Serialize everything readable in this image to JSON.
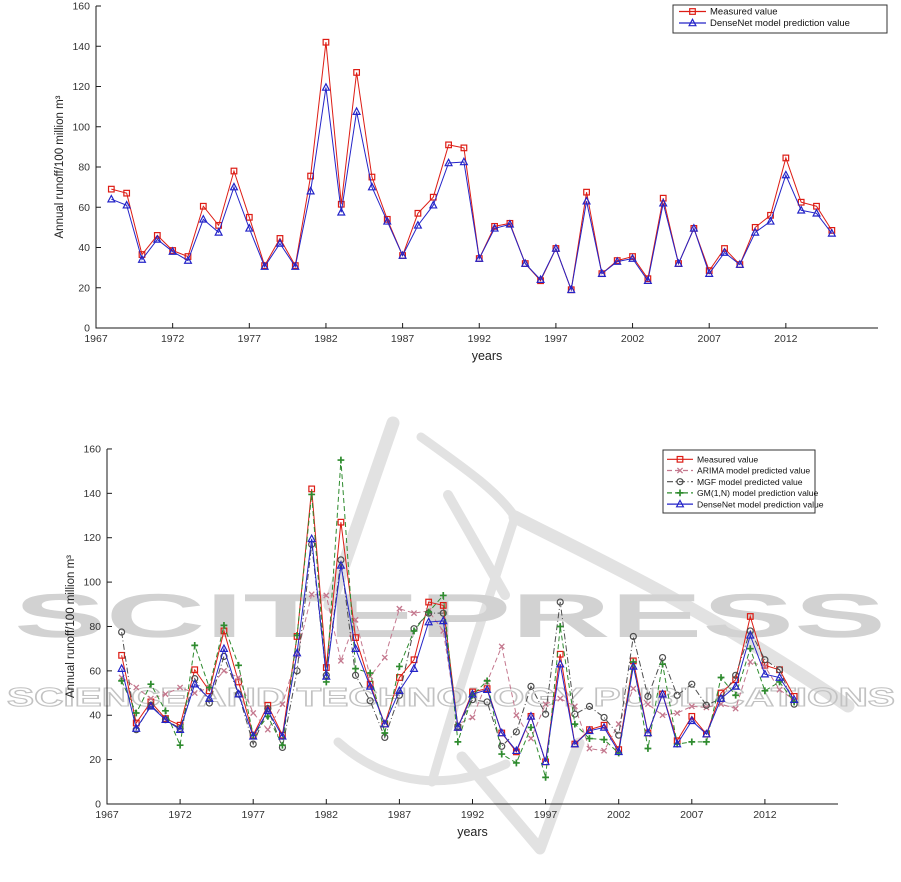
{
  "page": {
    "background": "#ffffff"
  },
  "watermark": {
    "line1": "SCITEPRESS",
    "line2": "SCIENCE AND TECHNOLOGY PUBLICATIONS",
    "letters_color": "#d2d2d2",
    "outline_color": "#c2c2c2",
    "art_color": "#e2e2e2"
  },
  "chart_data": [
    {
      "type": "line",
      "position": "top",
      "xlabel": "years",
      "ylabel": "Annual runoff/100 million m³",
      "ylim": [
        0,
        160
      ],
      "yticks": [
        0,
        20,
        40,
        60,
        80,
        100,
        120,
        140,
        160
      ],
      "xticks": [
        1967,
        1972,
        1977,
        1982,
        1987,
        1992,
        1997,
        2002,
        2007,
        2012
      ],
      "x_start": 1968,
      "years_range": [
        1968,
        2015
      ],
      "grid": false,
      "legend_position": "top-right",
      "series": [
        {
          "name": "Measured value",
          "color": "#dd1c14",
          "line_style": "solid",
          "marker": "square",
          "values": [
            69,
            67,
            36.5,
            46,
            38.5,
            35.5,
            60.5,
            51,
            78,
            55,
            31,
            44.5,
            31,
            75.5,
            142,
            61.5,
            127,
            75,
            54,
            36,
            57,
            65,
            91,
            89.5,
            34.5,
            50.5,
            52,
            32,
            23.5,
            39.5,
            19,
            67.5,
            27,
            33.5,
            35.5,
            24.5,
            64.5,
            32,
            49.5,
            28.5,
            39.5,
            31.5,
            50,
            56,
            84.5,
            62.5,
            60.5,
            48.5
          ]
        },
        {
          "name": "DenseNet model prediction value",
          "color": "#2424c8",
          "line_style": "solid",
          "marker": "triangle",
          "values": [
            64,
            61,
            34,
            44,
            38,
            33.5,
            54,
            47.5,
            70,
            49.5,
            30.5,
            42,
            30.5,
            68,
            119.5,
            57.5,
            107.5,
            70,
            53,
            36,
            51,
            61,
            82,
            82.5,
            34.5,
            49.5,
            51.5,
            32,
            24,
            39.5,
            19,
            63,
            27,
            33,
            34.5,
            23.5,
            62,
            32,
            49.5,
            27,
            37.5,
            31.5,
            47.5,
            53,
            76,
            58.5,
            57,
            47
          ]
        }
      ]
    },
    {
      "type": "line",
      "position": "bottom",
      "xlabel": "years",
      "ylabel": "Annual runoff/100 million m³",
      "ylim": [
        0,
        160
      ],
      "yticks": [
        0,
        20,
        40,
        60,
        80,
        100,
        120,
        140,
        160
      ],
      "xticks": [
        1967,
        1972,
        1977,
        1982,
        1987,
        1992,
        1997,
        2002,
        2007,
        2012
      ],
      "x_start": 1968,
      "years_range": [
        1968,
        2014
      ],
      "grid": false,
      "legend_position": "top-right",
      "series": [
        {
          "name": "Measured value",
          "color": "#dd1c14",
          "line_style": "solid",
          "marker": "square",
          "values": [
            67,
            36.5,
            46,
            38.5,
            35.5,
            60.5,
            51,
            78,
            55,
            31,
            44.5,
            31,
            75.5,
            142,
            61.5,
            127,
            75,
            54,
            36,
            57,
            65,
            91,
            89.5,
            34.5,
            50.5,
            52,
            32,
            23.5,
            39.5,
            19,
            67.5,
            27,
            33.5,
            35.5,
            24.5,
            64.5,
            32,
            49.5,
            28.5,
            39.5,
            31.5,
            50,
            56,
            84.5,
            62.5,
            60.5,
            48.5
          ]
        },
        {
          "name": "ARIMA model predicted value",
          "color": "#c4788e",
          "line_style": "dashed",
          "marker": "x",
          "values": [
            57,
            52.5,
            47.5,
            49.5,
            52.5,
            50,
            52.5,
            60,
            57,
            41,
            33.5,
            45,
            67,
            94.5,
            94,
            64.5,
            83,
            57.5,
            66,
            88,
            86,
            87,
            78,
            36,
            39,
            55,
            71,
            40,
            29.5,
            45,
            47.5,
            44,
            25,
            24,
            36,
            52,
            45,
            40,
            41,
            44,
            43.5,
            45,
            43,
            64,
            62,
            51.5,
            47
          ]
        },
        {
          "name": "MGF model predicted value",
          "color": "#4d4d4d",
          "line_style": "dashdot",
          "marker": "circle",
          "values": [
            77.5,
            33.5,
            44.5,
            38,
            34,
            56.5,
            45.5,
            66.5,
            49.5,
            27,
            43,
            25.5,
            60,
            117,
            58,
            110,
            58,
            46.5,
            30,
            49,
            79,
            86,
            86,
            35,
            47,
            46,
            26,
            32.5,
            53,
            40.5,
            91,
            40.5,
            44,
            39,
            31,
            75.5,
            48.5,
            66,
            49,
            54,
            44.5,
            47.5,
            58,
            78,
            65,
            60.5,
            45
          ]
        },
        {
          "name": "GM(1,N) model prediction value",
          "color": "#2e8b2e",
          "line_style": "dashed",
          "marker": "plus",
          "values": [
            55.5,
            41,
            54,
            42,
            26.5,
            71.5,
            52.5,
            80.5,
            62.5,
            31,
            39.5,
            26.5,
            76,
            139.5,
            55,
            155,
            61,
            59,
            32,
            62,
            78,
            86.5,
            94,
            28,
            49,
            55.5,
            22.5,
            18.5,
            34.5,
            12,
            80,
            36,
            29.5,
            29,
            23,
            64,
            25,
            63,
            27,
            28,
            28,
            57,
            49,
            70,
            51,
            55,
            46
          ]
        },
        {
          "name": "DenseNet model prediction value",
          "color": "#2424c8",
          "line_style": "solid",
          "marker": "triangle",
          "values": [
            61,
            34,
            44,
            38,
            33.5,
            54,
            47.5,
            70,
            49.5,
            30.5,
            42,
            30.5,
            68,
            119.5,
            57.5,
            107.5,
            70,
            53,
            36,
            51,
            61,
            82,
            82.5,
            34.5,
            49.5,
            51.5,
            32,
            24,
            39.5,
            19,
            63,
            27,
            33,
            34.5,
            23.5,
            62,
            32,
            49.5,
            27,
            37.5,
            31.5,
            47.5,
            53,
            76,
            58.5,
            57,
            47
          ]
        }
      ]
    }
  ]
}
